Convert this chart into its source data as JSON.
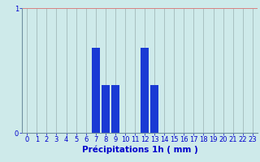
{
  "categories": [
    0,
    1,
    2,
    3,
    4,
    5,
    6,
    7,
    8,
    9,
    10,
    11,
    12,
    13,
    14,
    15,
    16,
    17,
    18,
    19,
    20,
    21,
    22,
    23
  ],
  "values": [
    0,
    0,
    0,
    0,
    0,
    0,
    0,
    0.68,
    0.38,
    0.38,
    0,
    0,
    0.68,
    0.38,
    0,
    0,
    0,
    0,
    0,
    0,
    0,
    0,
    0,
    0
  ],
  "bar_color": "#1a3ad4",
  "background_color": "#ceeaea",
  "plot_bg_color": "#ceeaea",
  "xlabel": "Précipitations 1h ( mm )",
  "ylim": [
    0,
    1.0
  ],
  "xlim": [
    -0.5,
    23.5
  ],
  "yticks": [
    0,
    1
  ],
  "xticks": [
    0,
    1,
    2,
    3,
    4,
    5,
    6,
    7,
    8,
    9,
    10,
    11,
    12,
    13,
    14,
    15,
    16,
    17,
    18,
    19,
    20,
    21,
    22,
    23
  ],
  "grid_color_h": "#d88080",
  "grid_color_v": "#9ab0b0",
  "spine_color": "#7090a0",
  "tick_color": "#0000cc",
  "label_color": "#0000cc",
  "xlabel_fontsize": 7.5,
  "tick_fontsize": 6.0
}
